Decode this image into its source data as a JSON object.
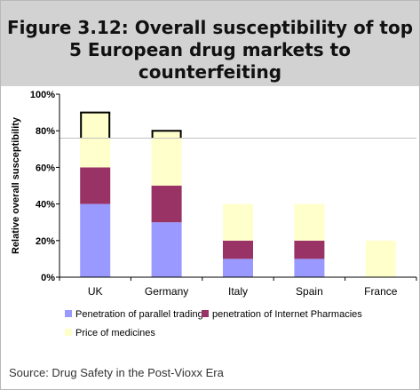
{
  "figure": {
    "title": "Figure 3.12: Overall susceptibility of top 5 European drug markets to counterfeiting",
    "source": "Source: Drug Safety in the Post-Vioxx Era"
  },
  "colors": {
    "header_bg": "#d2d2d2",
    "parallel_trading": "#9999ff",
    "internet_pharmacies": "#993366",
    "price_of_medicines": "#ffffcc",
    "threshold_line": "#c0c0c0"
  },
  "chart_data": {
    "type": "bar",
    "stacked": true,
    "categories": [
      "UK",
      "Germany",
      "Italy",
      "Spain",
      "France"
    ],
    "series": [
      {
        "name": "Penetration of parallel trading",
        "values": [
          40,
          30,
          10,
          10,
          0
        ]
      },
      {
        "name": "penetration of Internet Pharmacies",
        "values": [
          20,
          20,
          10,
          10,
          0
        ]
      },
      {
        "name": "Price of medicines",
        "values": [
          30,
          30,
          20,
          20,
          20
        ]
      }
    ],
    "ylabel": "Relative overall susceptibility",
    "xlabel": "",
    "ylim": [
      0,
      100
    ],
    "yticks": [
      0,
      20,
      40,
      60,
      80,
      100
    ],
    "ytick_labels": [
      "0%",
      "20%",
      "40%",
      "60%",
      "80%",
      "100%"
    ],
    "reference_line": 76,
    "error_bar_categories": [
      "UK",
      "Germany"
    ],
    "grid": false,
    "legend_position": "bottom"
  }
}
